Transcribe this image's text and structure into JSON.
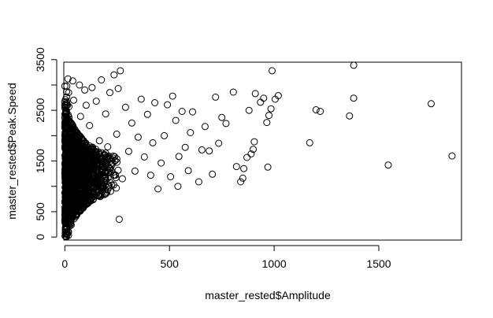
{
  "chart_data": {
    "type": "scatter",
    "title": "",
    "xlabel": "master_rested$Amplitude",
    "ylabel": "master_rested$Peak.Speed",
    "xlim": [
      -5,
      1895
    ],
    "ylim": [
      -60,
      3450
    ],
    "x_ticks": [
      0,
      500,
      1000,
      1500
    ],
    "y_ticks": [
      0,
      500,
      1000,
      1500,
      2000,
      2500,
      3000,
      3500
    ],
    "x_tick_labels": [
      "0",
      "500",
      "1000",
      "1500"
    ],
    "y_tick_labels": [
      "0",
      "500",
      "",
      "1500",
      "",
      "2500",
      "",
      "3500"
    ],
    "grid": false,
    "marker": "open-circle",
    "marker_color": "#000000",
    "points": [
      [
        1850,
        1600
      ],
      [
        1750,
        2630
      ],
      [
        1545,
        1420
      ],
      [
        1380,
        3390
      ],
      [
        1380,
        2740
      ],
      [
        1360,
        2390
      ],
      [
        1220,
        2480
      ],
      [
        1200,
        2510
      ],
      [
        1170,
        1860
      ],
      [
        1020,
        2790
      ],
      [
        1005,
        2720
      ],
      [
        990,
        3280
      ],
      [
        985,
        2530
      ],
      [
        975,
        2400
      ],
      [
        970,
        1380
      ],
      [
        965,
        2260
      ],
      [
        950,
        2740
      ],
      [
        935,
        2660
      ],
      [
        910,
        2830
      ],
      [
        905,
        1880
      ],
      [
        900,
        1730
      ],
      [
        890,
        1640
      ],
      [
        880,
        2500
      ],
      [
        870,
        1570
      ],
      [
        855,
        1350
      ],
      [
        850,
        1160
      ],
      [
        840,
        1090
      ],
      [
        820,
        1390
      ],
      [
        805,
        2860
      ],
      [
        770,
        2240
      ],
      [
        750,
        2360
      ],
      [
        735,
        1850
      ],
      [
        720,
        2760
      ],
      [
        705,
        1240
      ],
      [
        690,
        1700
      ],
      [
        670,
        2180
      ],
      [
        655,
        1720
      ],
      [
        640,
        1090
      ],
      [
        610,
        2470
      ],
      [
        600,
        2060
      ],
      [
        590,
        1310
      ],
      [
        575,
        1770
      ],
      [
        560,
        2480
      ],
      [
        545,
        1590
      ],
      [
        540,
        1000
      ],
      [
        530,
        2300
      ],
      [
        515,
        2780
      ],
      [
        505,
        1190
      ],
      [
        490,
        2610
      ],
      [
        475,
        2000
      ],
      [
        460,
        1460
      ],
      [
        445,
        950
      ],
      [
        430,
        2650
      ],
      [
        420,
        1860
      ],
      [
        410,
        1220
      ],
      [
        395,
        2420
      ],
      [
        380,
        1580
      ],
      [
        365,
        2720
      ],
      [
        350,
        1970
      ],
      [
        335,
        1300
      ],
      [
        320,
        2250
      ],
      [
        305,
        1690
      ],
      [
        290,
        2560
      ],
      [
        275,
        1150
      ],
      [
        265,
        3280
      ],
      [
        260,
        350
      ],
      [
        255,
        2930
      ],
      [
        248,
        2030
      ],
      [
        235,
        3200
      ],
      [
        225,
        1420
      ],
      [
        215,
        2850
      ],
      [
        205,
        1780
      ],
      [
        195,
        2430
      ],
      [
        185,
        1210
      ],
      [
        175,
        3100
      ],
      [
        165,
        1900
      ],
      [
        160,
        1050
      ],
      [
        150,
        2680
      ],
      [
        140,
        1550
      ],
      [
        130,
        2950
      ],
      [
        125,
        780
      ],
      [
        118,
        2200
      ],
      [
        110,
        1320
      ],
      [
        102,
        2600
      ],
      [
        95,
        2900
      ],
      [
        88,
        1680
      ],
      [
        82,
        620
      ],
      [
        75,
        2380
      ],
      [
        70,
        3000
      ],
      [
        62,
        1980
      ],
      [
        55,
        1450
      ],
      [
        48,
        1950
      ],
      [
        42,
        2700
      ],
      [
        38,
        3080
      ],
      [
        32,
        520
      ],
      [
        28,
        2260
      ],
      [
        22,
        1120
      ],
      [
        18,
        2850
      ],
      [
        15,
        3120
      ],
      [
        12,
        1750
      ],
      [
        10,
        380
      ],
      [
        8,
        2450
      ],
      [
        6,
        950
      ],
      [
        4,
        1600
      ],
      [
        3,
        180
      ],
      [
        2,
        60
      ],
      [
        1,
        20
      ],
      [
        0,
        2980
      ],
      [
        1,
        2200
      ],
      [
        2,
        850
      ]
    ]
  }
}
